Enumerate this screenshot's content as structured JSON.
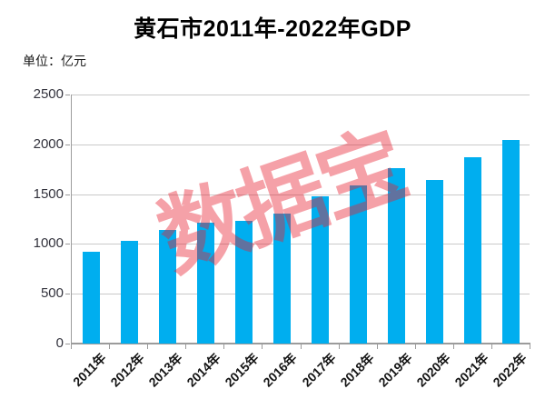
{
  "chart": {
    "title": "黄石市2011年-2022年GDP",
    "unit_label": "单位：亿元",
    "watermark_text": "数据宝",
    "colors": {
      "bar": "#00aeef",
      "watermark": "rgba(232,32,47,0.42)",
      "gridline": "#c9c9c9",
      "axis": "#9b9b9b",
      "title": "#000000",
      "tick_label": "#33333d"
    }
  },
  "chart_data": {
    "type": "bar",
    "title": "黄石市2011年-2022年GDP",
    "unit": "亿元",
    "categories": [
      "2011年",
      "2012年",
      "2013年",
      "2014年",
      "2015年",
      "2016年",
      "2017年",
      "2018年",
      "2019年",
      "2020年",
      "2021年",
      "2022年"
    ],
    "values": [
      920,
      1035,
      1140,
      1215,
      1230,
      1305,
      1480,
      1585,
      1765,
      1640,
      1870,
      2040
    ],
    "xlabel": "",
    "ylabel": "亿元",
    "ylim": [
      0,
      2500
    ],
    "yticks": [
      0,
      500,
      1000,
      1500,
      2000,
      2500
    ],
    "grid": true,
    "legend": false,
    "annotations": [
      "数据宝"
    ]
  }
}
